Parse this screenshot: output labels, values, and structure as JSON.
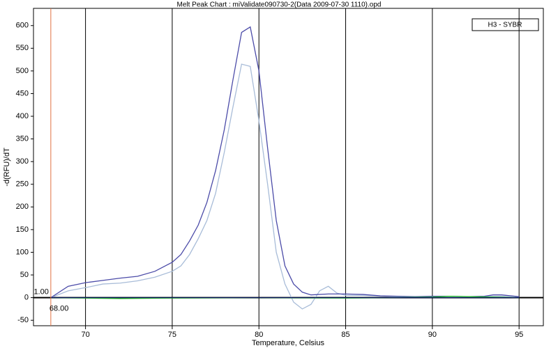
{
  "chart_data": {
    "type": "line",
    "title": "Melt Peak Chart : miValidate090730-2(Data 2009-07-30 1110).opd",
    "x_label": "Temperature, Celsius",
    "y_label": "-d(RFU)/dT",
    "legend_label": "H3 - SYBR",
    "xlim": [
      67,
      96.4
    ],
    "ylim": [
      -62,
      638
    ],
    "xticks": [
      70,
      75,
      80,
      85,
      90,
      95
    ],
    "yticks": [
      -50,
      0,
      50,
      100,
      150,
      200,
      250,
      300,
      350,
      400,
      450,
      500,
      550,
      600
    ],
    "grid": true,
    "cursor": {
      "x": 68,
      "x_label": "68.00",
      "y_label": "1.00",
      "color": "#e07040"
    },
    "series": [
      {
        "color": "#a8bcd8",
        "x": [
          68,
          69,
          70,
          71,
          72,
          73,
          74,
          75,
          75.5,
          76,
          76.5,
          77,
          77.5,
          78,
          78.5,
          79,
          79.5,
          80,
          80.5,
          81,
          81.5,
          82,
          82.5,
          83,
          83.5,
          84,
          84.5,
          85,
          86,
          87,
          88,
          90,
          92,
          94,
          95
        ],
        "values": [
          0,
          15,
          22,
          30,
          32,
          37,
          45,
          58,
          70,
          95,
          130,
          170,
          230,
          320,
          420,
          515,
          510,
          390,
          250,
          100,
          30,
          -10,
          -25,
          -15,
          15,
          25,
          10,
          5,
          5,
          3,
          2,
          2,
          2,
          3,
          0
        ]
      },
      {
        "color": "#4b4ba8",
        "x": [
          68,
          69,
          70,
          71,
          72,
          73,
          74,
          75,
          75.5,
          76,
          76.5,
          77,
          77.5,
          78,
          78.5,
          79,
          79.5,
          80,
          80.5,
          81,
          81.5,
          82,
          82.5,
          83,
          84,
          85,
          86,
          87,
          88,
          89,
          90,
          91,
          92,
          93,
          93.5,
          94,
          95
        ],
        "values": [
          0,
          25,
          33,
          38,
          43,
          47,
          58,
          78,
          95,
          125,
          160,
          210,
          280,
          370,
          480,
          585,
          597,
          500,
          330,
          170,
          70,
          30,
          12,
          6,
          8,
          8,
          7,
          4,
          3,
          2,
          3,
          3,
          2,
          3,
          6,
          6,
          2
        ]
      },
      {
        "color": "#22c022",
        "x": [
          68,
          70,
          72,
          75,
          80,
          85,
          90,
          91,
          95
        ],
        "values": [
          0,
          -1,
          -2,
          -1,
          0,
          -1,
          1,
          3,
          0
        ]
      },
      {
        "color": "#0a1a60",
        "x": [
          68,
          75,
          80,
          85,
          90,
          95
        ],
        "values": [
          0,
          0,
          0,
          0,
          0,
          0
        ]
      }
    ]
  }
}
